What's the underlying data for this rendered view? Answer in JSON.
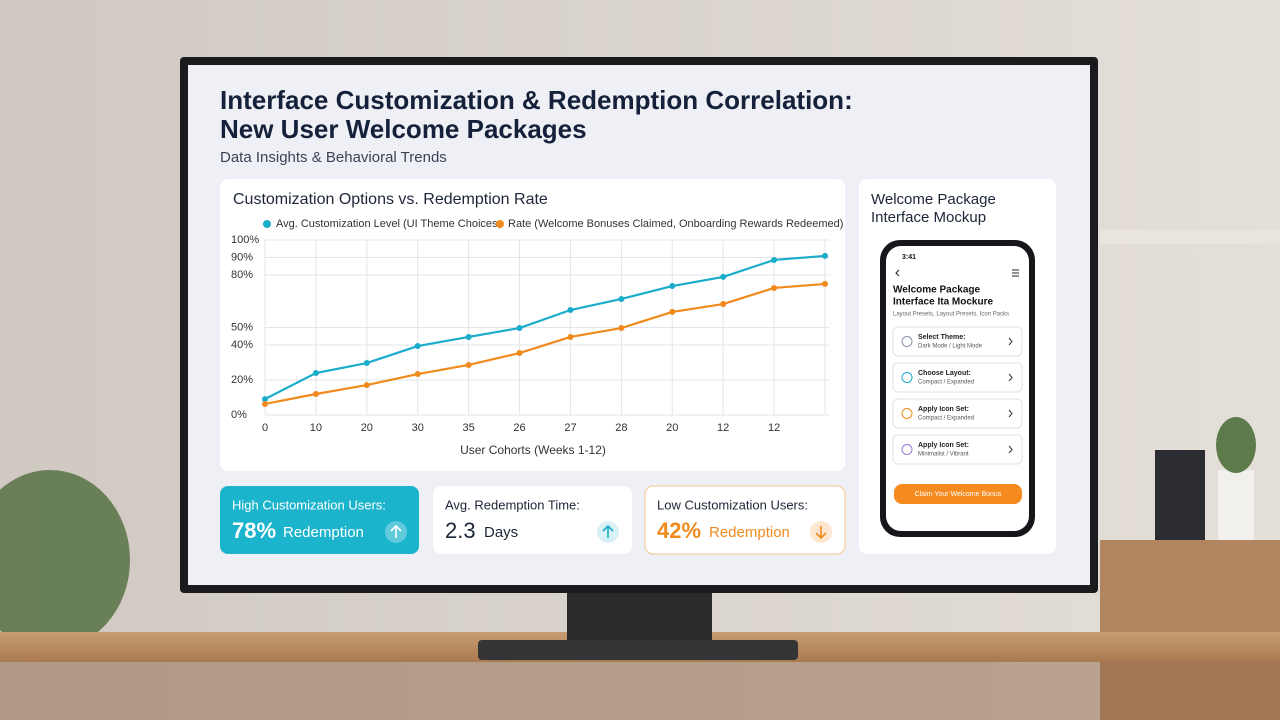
{
  "header": {
    "title_line1": "Interface Customization & Redemption Correlation:",
    "title_line2": "New User Welcome Packages",
    "subtitle": "Data Insights & Behavioral Trends"
  },
  "chart_data": {
    "type": "line",
    "title": "Customization Options vs. Redemption Rate",
    "categories": [
      "0",
      "10",
      "20",
      "30",
      "35",
      "26",
      "27",
      "28",
      "20",
      "12",
      "12",
      null
    ],
    "series": [
      {
        "name": "Avg. Customization Level (UI Theme Choices,",
        "color": "#1aaccb",
        "values": [
          9.1,
          24,
          29.7,
          39.4,
          44.6,
          49.7,
          60,
          66.3,
          73.7,
          78.9,
          88.6,
          90.9
        ]
      },
      {
        "name": "Rate (Welcome Bonuses Claimed, Onboarding Rewards Redeemed)",
        "color": "#f08a1c",
        "values": [
          6.3,
          12,
          17.1,
          23.4,
          28.6,
          35.4,
          44.6,
          49.7,
          58.9,
          63.4,
          72.6,
          74.9
        ]
      }
    ],
    "xlabel": "User Cohorts (Weeks 1-12)",
    "ylim": [
      0,
      100
    ],
    "yticks": [
      {
        "value": 100,
        "label": "100%"
      },
      {
        "value": 90,
        "label": "90%"
      },
      {
        "value": 80,
        "label": "80%"
      },
      {
        "value": 50,
        "label": "50%"
      },
      {
        "value": 40,
        "label": "40%"
      },
      {
        "value": 20,
        "label": "20%"
      },
      {
        "value": 0,
        "label": "0%"
      }
    ],
    "grid": true
  },
  "stats": [
    {
      "label": "High Customization Users:",
      "value": "78%",
      "unit": "Redemption"
    },
    {
      "label": "Avg. Redemption Time:",
      "value": "2.3",
      "unit": "Days"
    },
    {
      "label": "Low Customization Users:",
      "value": "42%",
      "unit": "Redemption"
    }
  ],
  "mockup": {
    "title_line1": "Welcome Package",
    "title_line2": "Interface Mockup",
    "time": "3:41",
    "screen_title_line1": "Welcome Package",
    "screen_title_line2": "Interface Ita Mockure",
    "screen_subtitle": "Layout Presets, Layout Presets, Icon Packs",
    "items": [
      {
        "title": "Select Theme:",
        "detail": "Dark Mode / Light Mode"
      },
      {
        "title": "Choose Layout:",
        "detail": "Compact / Expanded"
      },
      {
        "title": "Apply Icon Set:",
        "detail": "Compact / Expanded"
      },
      {
        "title": "Apply Icon Set:",
        "detail": "Minimalist / Vibrant"
      }
    ],
    "button": "Claim Your Welcome Bonus"
  }
}
